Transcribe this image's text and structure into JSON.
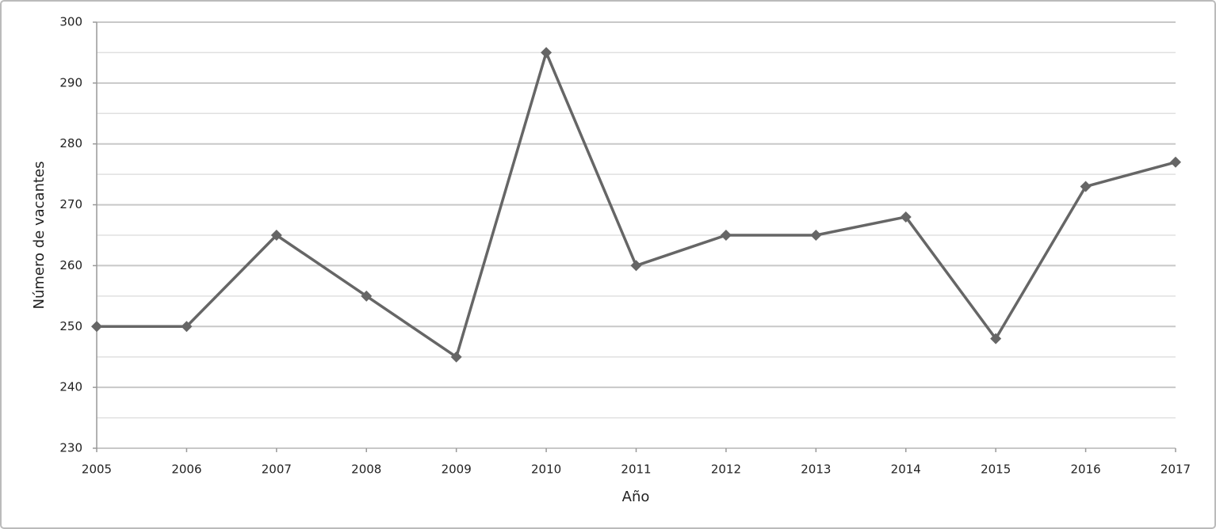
{
  "chart_data": {
    "type": "line",
    "x_label": "Año",
    "y_label": "Número de vacantes",
    "x": [
      2005,
      2006,
      2007,
      2008,
      2009,
      2010,
      2011,
      2012,
      2013,
      2014,
      2015,
      2016,
      2017
    ],
    "series": [
      {
        "color": "#666666",
        "values": [
          250,
          250,
          265,
          255,
          245,
          295,
          260,
          265,
          265,
          268,
          248,
          273,
          277
        ]
      }
    ],
    "xlim": [
      2005,
      2017
    ],
    "xticks": [
      2005,
      2006,
      2007,
      2008,
      2009,
      2010,
      2011,
      2012,
      2013,
      2014,
      2015,
      2016,
      2017
    ],
    "ylim": [
      230,
      300
    ],
    "yticks": [
      230,
      240,
      250,
      260,
      270,
      280,
      290,
      300
    ],
    "minor_yticks": [
      235,
      245,
      255,
      265,
      275,
      285,
      295
    ],
    "grid": true
  }
}
